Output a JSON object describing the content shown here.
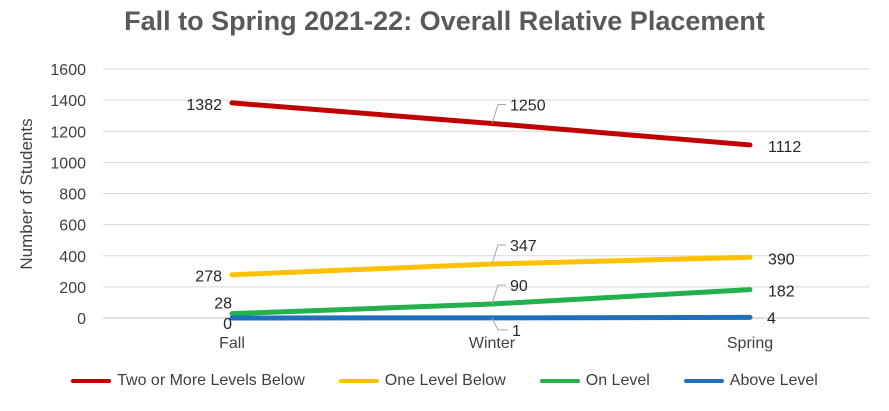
{
  "chart_data": {
    "type": "line",
    "title": "Fall to Spring 2021-22: Overall Relative Placement",
    "xlabel": "",
    "ylabel": "Number of Students",
    "categories": [
      "Fall",
      "Winter",
      "Spring"
    ],
    "ylim": [
      0,
      1600
    ],
    "yticks": [
      0,
      200,
      400,
      600,
      800,
      1000,
      1200,
      1400,
      1600
    ],
    "grid": true,
    "legend_position": "bottom",
    "series": [
      {
        "name": "Two or More Levels Below",
        "color": "#C00000",
        "values": [
          1382,
          1250,
          1112
        ]
      },
      {
        "name": "One Level Below",
        "color": "#FFC000",
        "values": [
          278,
          347,
          390
        ]
      },
      {
        "name": "On Level",
        "color": "#22B14C",
        "values": [
          28,
          90,
          182
        ]
      },
      {
        "name": "Above Level",
        "color": "#1F6FBF",
        "values": [
          0,
          1,
          4
        ]
      }
    ]
  }
}
